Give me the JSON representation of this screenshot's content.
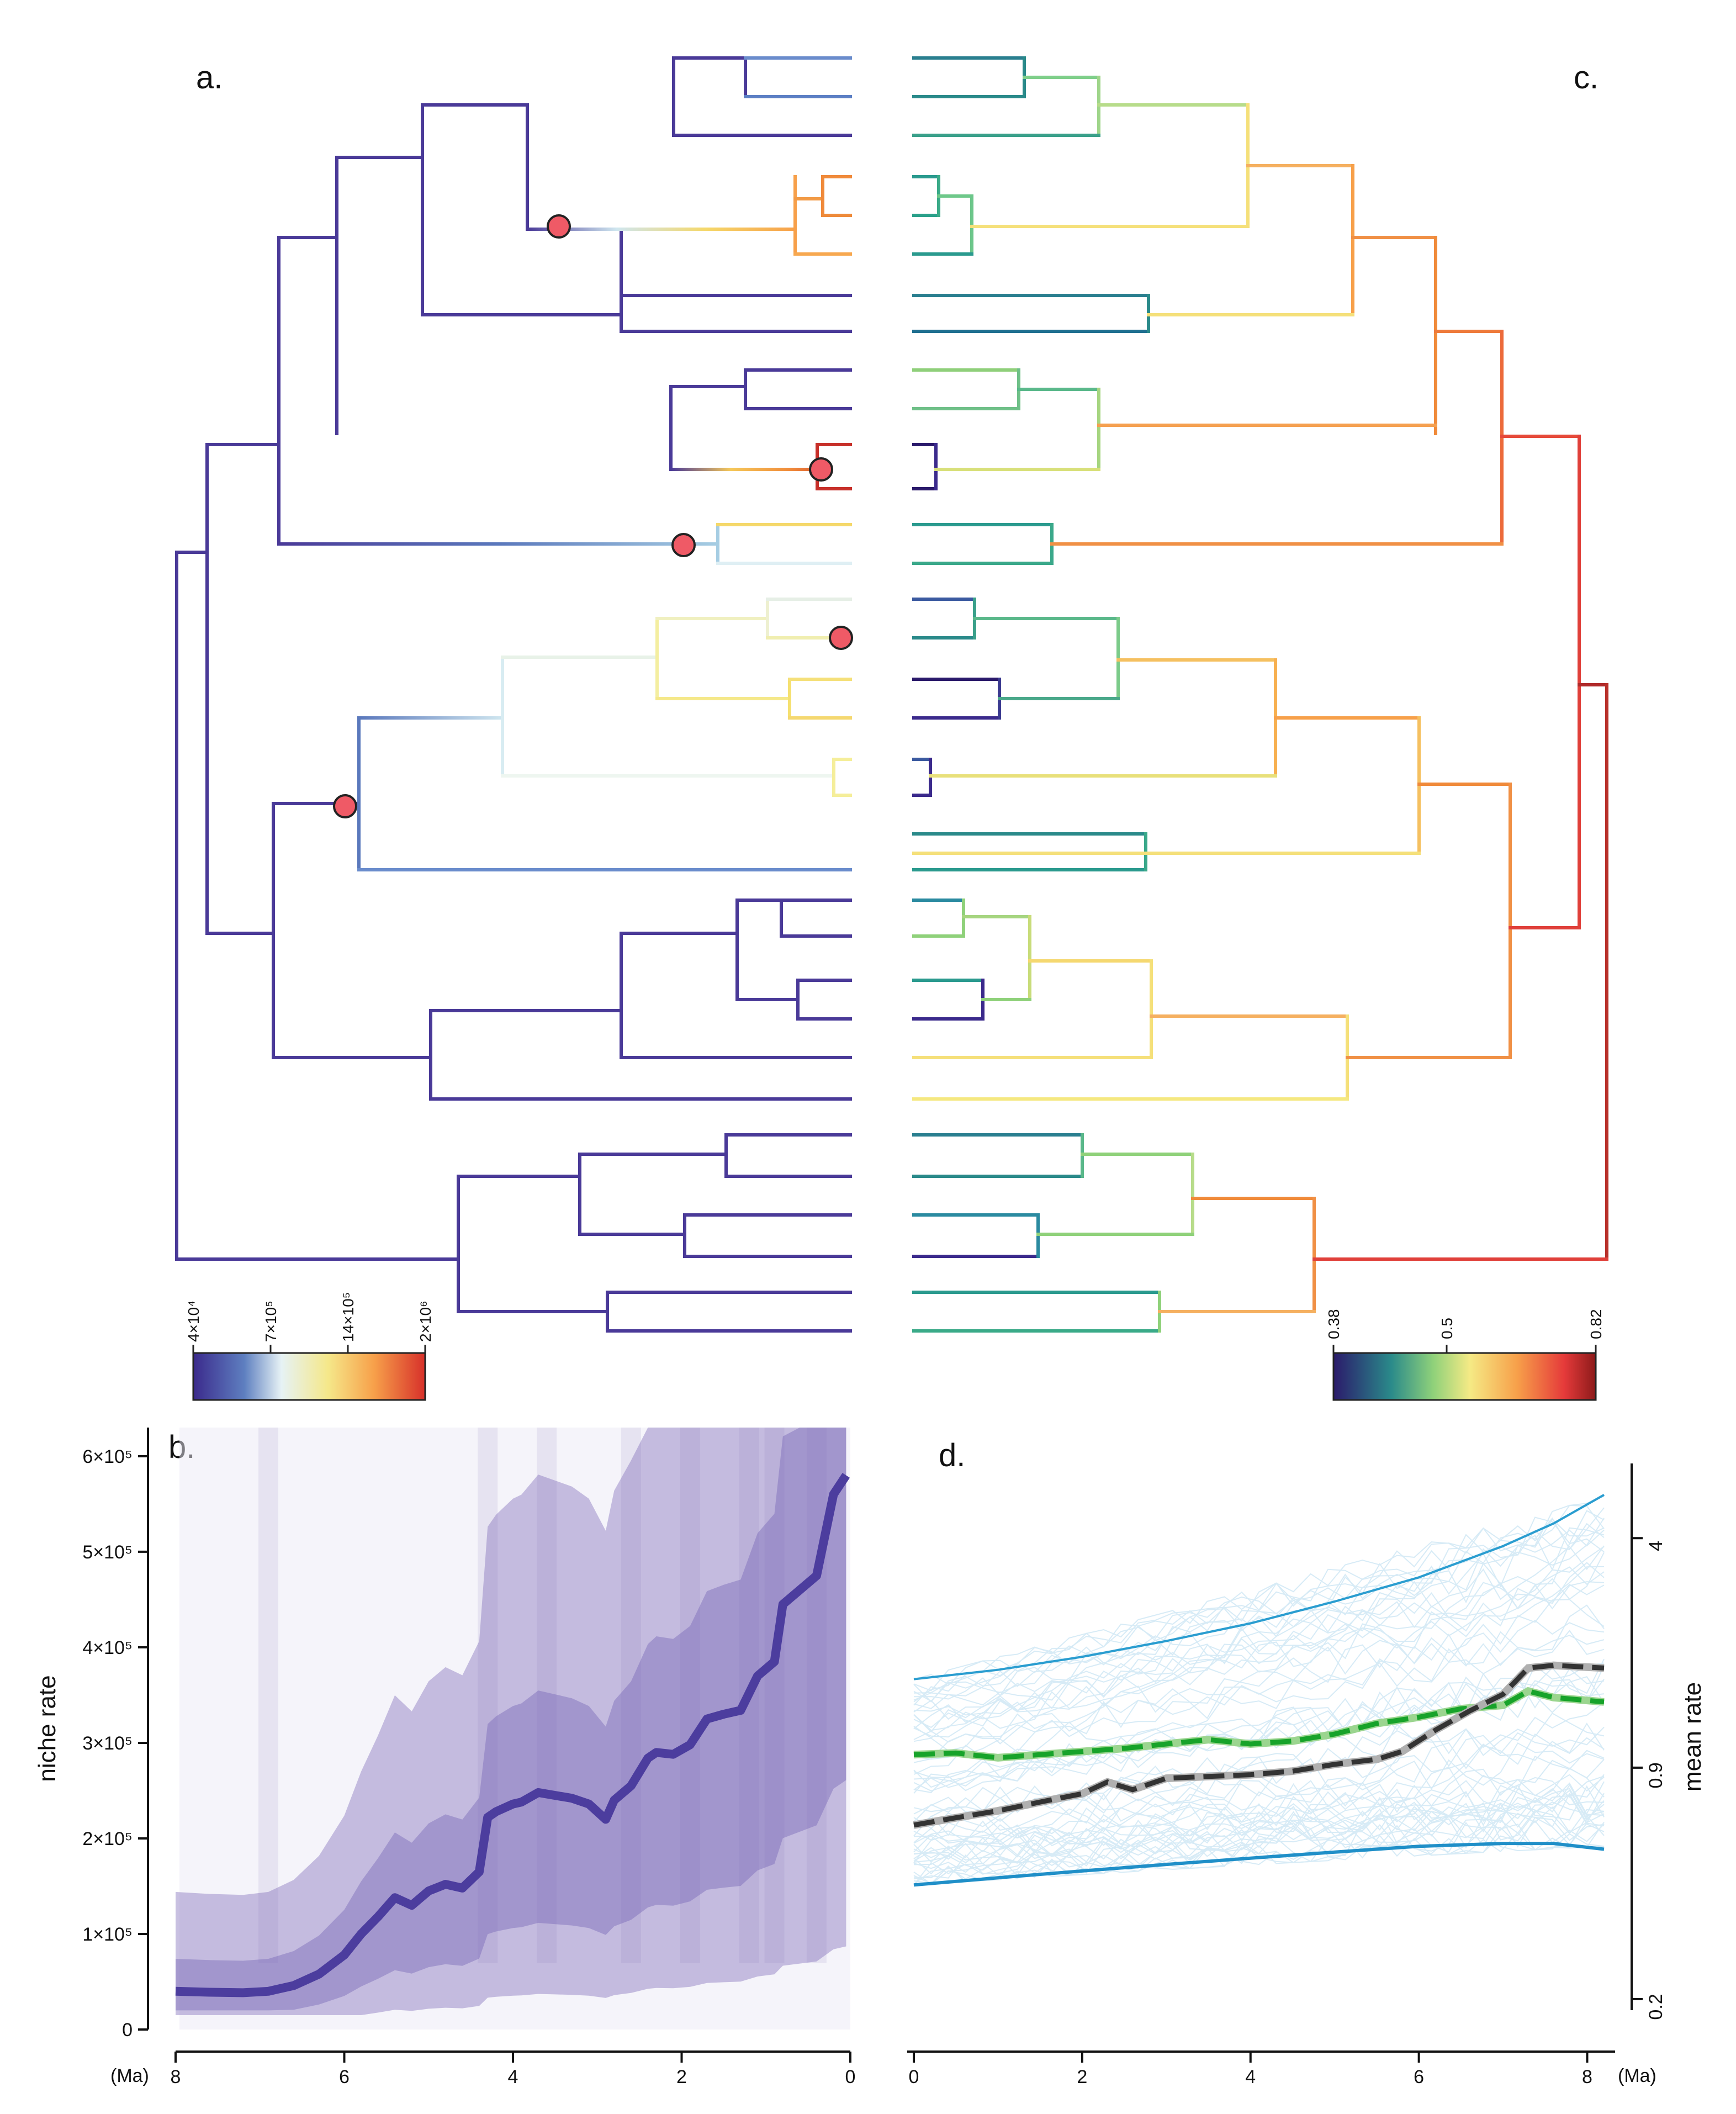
{
  "panels": {
    "a": "a.",
    "b": "b.",
    "c": "c.",
    "d": "d."
  },
  "colorbar_a": {
    "ticks": [
      "4×10⁴",
      "7×10⁵",
      "14×10⁵",
      "2×10⁶"
    ],
    "colors": [
      "#3b2a8c",
      "#5e7fc0",
      "#e6f2f5",
      "#f5e88a",
      "#f7a04a",
      "#d7302a"
    ]
  },
  "colorbar_c": {
    "ticks": [
      "0.38",
      "0.5",
      "0.82"
    ],
    "colors": [
      "#2b1a6b",
      "#2a8a8a",
      "#8fd17a",
      "#f5ea85",
      "#f7a04a",
      "#e53a3a",
      "#8c1a1a"
    ]
  },
  "chart_data": [
    {
      "type": "line",
      "panel": "a",
      "description_hidden": true,
      "title": "",
      "series": [
        {
          "name": "phylogeny (niche rate)",
          "values": []
        }
      ],
      "rate_shift_nodes": 6
    },
    {
      "type": "line",
      "panel": "b",
      "title": "",
      "xlabel": "(Ma)",
      "ylabel": "niche rate",
      "x_ticks": [
        "8",
        "6",
        "4",
        "2",
        "0"
      ],
      "y_ticks": [
        "0",
        "1×10⁵",
        "2×10⁵",
        "3×10⁵",
        "4×10⁵",
        "5×10⁵",
        "6×10⁵"
      ],
      "xlim": [
        8,
        0
      ],
      "ylim": [
        0,
        630000
      ],
      "series": [
        {
          "name": "mean niche rate",
          "x": [
            8,
            7.6,
            7.2,
            6.9,
            6.6,
            6.3,
            6.0,
            5.8,
            5.6,
            5.4,
            5.2,
            5.0,
            4.8,
            4.6,
            4.4,
            4.3,
            4.2,
            4.0,
            3.9,
            3.7,
            3.5,
            3.3,
            3.1,
            2.9,
            2.8,
            2.6,
            2.4,
            2.3,
            2.1,
            1.9,
            1.7,
            1.5,
            1.3,
            1.1,
            0.9,
            0.8,
            0.6,
            0.4,
            0.2,
            0.05
          ],
          "values": [
            40000,
            39000,
            38500,
            40000,
            46000,
            58000,
            78000,
            100000,
            118000,
            138000,
            130000,
            145000,
            152000,
            148000,
            165000,
            222000,
            228000,
            236000,
            238000,
            248000,
            245000,
            242000,
            236000,
            220000,
            240000,
            255000,
            284000,
            290000,
            288000,
            298000,
            325000,
            330000,
            334000,
            370000,
            385000,
            445000,
            460000,
            475000,
            560000,
            580000
          ]
        }
      ],
      "envelope": {
        "name": "posterior density",
        "color": "#7b6bb8"
      }
    },
    {
      "type": "line",
      "panel": "c",
      "title": "",
      "series": [
        {
          "name": "phylogeny (mean rate)",
          "values": []
        }
      ]
    },
    {
      "type": "line",
      "panel": "d",
      "title": "",
      "xlabel": "(Ma)",
      "ylabel": "mean rate",
      "x_ticks": [
        "0",
        "2",
        "4",
        "6",
        "8"
      ],
      "y_ticks": [
        "0.2",
        "0.9",
        "4"
      ],
      "xlim": [
        0,
        8.2
      ],
      "ylim": [
        0.2,
        6.5
      ],
      "series": [
        {
          "name": "upper bound",
          "color": "#2a9dd0",
          "x": [
            0,
            1,
            2,
            3,
            4,
            5,
            6,
            7,
            7.6,
            8.2
          ],
          "values": [
            1.6,
            1.7,
            1.85,
            2.05,
            2.3,
            2.65,
            3.1,
            3.8,
            4.4,
            5.3
          ]
        },
        {
          "name": "lower bound",
          "color": "#1f8fc8",
          "x": [
            0,
            1,
            2,
            3,
            4,
            5,
            6,
            7,
            7.6,
            8.2
          ],
          "values": [
            0.42,
            0.44,
            0.46,
            0.48,
            0.5,
            0.52,
            0.54,
            0.55,
            0.55,
            0.53
          ]
        },
        {
          "name": "median (green)",
          "color": "#17a32a",
          "x": [
            0,
            0.5,
            1,
            1.5,
            2,
            2.5,
            3,
            3.5,
            4,
            4.5,
            5,
            5.5,
            6,
            6.5,
            7,
            7.3,
            7.6,
            8.2
          ],
          "values": [
            0.98,
            0.99,
            0.96,
            0.98,
            1.0,
            1.02,
            1.05,
            1.08,
            1.05,
            1.07,
            1.12,
            1.2,
            1.25,
            1.32,
            1.35,
            1.48,
            1.42,
            1.38
          ]
        },
        {
          "name": "mean (dark)",
          "color": "#333333",
          "x": [
            0,
            0.5,
            1,
            1.5,
            2,
            2.3,
            2.6,
            3,
            3.5,
            4,
            4.5,
            5,
            5.5,
            5.8,
            6.2,
            6.6,
            7,
            7.3,
            7.6,
            8.2
          ],
          "values": [
            0.62,
            0.65,
            0.68,
            0.72,
            0.76,
            0.82,
            0.78,
            0.84,
            0.85,
            0.86,
            0.88,
            0.92,
            0.95,
            1.0,
            1.15,
            1.3,
            1.45,
            1.72,
            1.75,
            1.72
          ]
        }
      ]
    }
  ]
}
